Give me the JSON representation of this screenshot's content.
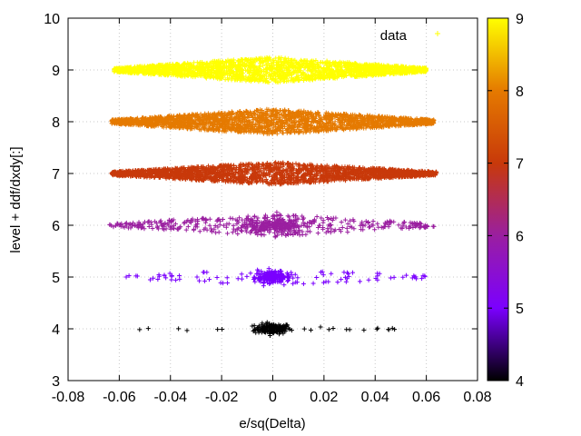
{
  "chart_data": {
    "type": "scatter",
    "title": "",
    "xlabel": "e/sq(Delta)",
    "ylabel": "level + ddf/dxdy[:]",
    "xlim": [
      -0.08,
      0.08
    ],
    "ylim": [
      3,
      10
    ],
    "xticks": [
      "-0.08",
      "-0.06",
      "-0.04",
      "-0.02",
      "0",
      "0.02",
      "0.04",
      "0.06",
      "0.08"
    ],
    "yticks": [
      "3",
      "4",
      "5",
      "6",
      "7",
      "8",
      "9",
      "10"
    ],
    "grid": true,
    "legend": {
      "label": "data",
      "position": "top-right"
    },
    "colorbar": {
      "range": [
        4,
        9
      ],
      "ticks": [
        "4",
        "5",
        "6",
        "7",
        "8",
        "9"
      ],
      "stops": [
        "#000000",
        "#7b00ff",
        "#9a1fa0",
        "#c8390a",
        "#e57a00",
        "#ffff00"
      ]
    },
    "series": [
      {
        "level": 4,
        "color": "#000000",
        "x_range": [
          -0.061,
          0.054
        ],
        "y_center": 4.0,
        "y_spread_max": 0.12,
        "density": "sparse"
      },
      {
        "level": 5,
        "color": "#7b00ff",
        "x_range": [
          -0.061,
          0.063
        ],
        "y_center": 5.0,
        "y_spread_max": 0.18,
        "density": "sparse"
      },
      {
        "level": 6,
        "color": "#9a1fa0",
        "x_range": [
          -0.064,
          0.063
        ],
        "y_center": 6.0,
        "y_spread_max": 0.22,
        "density": "medium"
      },
      {
        "level": 7,
        "color": "#c8390a",
        "x_range": [
          -0.063,
          0.064
        ],
        "y_center": 7.0,
        "y_spread_max": 0.22,
        "density": "dense"
      },
      {
        "level": 8,
        "color": "#e57a00",
        "x_range": [
          -0.063,
          0.063
        ],
        "y_center": 8.0,
        "y_spread_max": 0.25,
        "density": "dense"
      },
      {
        "level": 9,
        "color": "#ffff00",
        "x_range": [
          -0.062,
          0.06
        ],
        "y_center": 9.0,
        "y_spread_max": 0.25,
        "density": "dense"
      }
    ]
  }
}
